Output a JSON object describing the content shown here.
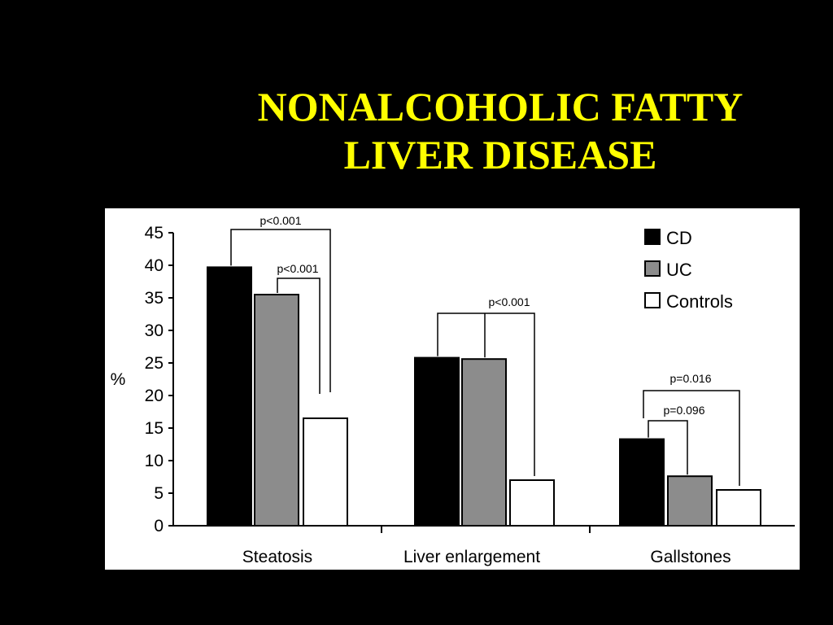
{
  "slide": {
    "title_line1": "NONALCOHOLIC FATTY",
    "title_line2": "LIVER DISEASE"
  },
  "colors": {
    "background": "#000000",
    "title": "#ffff00",
    "panel": "#ffffff"
  },
  "chart_data": {
    "type": "bar",
    "title": "",
    "xlabel": "",
    "ylabel": "%",
    "ylim": [
      0,
      45
    ],
    "yticks": [
      0,
      5,
      10,
      15,
      20,
      25,
      30,
      35,
      40,
      45
    ],
    "categories": [
      "Steatosis",
      "Liver enlargement",
      "Gallstones"
    ],
    "series": [
      {
        "name": "CD",
        "color": "#000000",
        "values": [
          39.7,
          25.8,
          13.3
        ]
      },
      {
        "name": "UC",
        "color": "#8c8c8c",
        "values": [
          35.5,
          25.6,
          7.6
        ]
      },
      {
        "name": "Controls",
        "color": "#ffffff",
        "values": [
          16.5,
          7.0,
          5.5
        ]
      }
    ],
    "legend_position": "top-right",
    "grid": false,
    "annotations": [
      {
        "label": "p<0.001",
        "category": "Steatosis",
        "from": "CD",
        "to": "Controls"
      },
      {
        "label": "p<0.001",
        "category": "Steatosis",
        "from": "UC",
        "to": "Controls"
      },
      {
        "label": "p<0.001",
        "category": "Liver enlargement",
        "from": [
          "CD",
          "UC"
        ],
        "to": "Controls"
      },
      {
        "label": "p=0.016",
        "category": "Gallstones",
        "from": "CD",
        "to": "Controls"
      },
      {
        "label": "p=0.096",
        "category": "Gallstones",
        "from": "CD",
        "to": "UC"
      }
    ]
  }
}
